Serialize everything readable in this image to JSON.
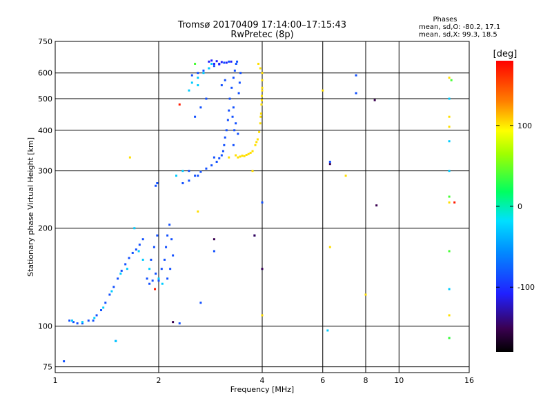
{
  "chart_data": {
    "type": "scatter",
    "title": "Tromsø 20170409 17:14:00–17:15:43",
    "subtitle": "RwPretec (8p)",
    "xlabel": "Frequency [MHz]",
    "ylabel": "Stationary phase Virtual Height [km]",
    "x_scale": "log",
    "y_scale": "log",
    "xlim": [
      1,
      16
    ],
    "ylim": [
      72,
      750
    ],
    "x_ticks": [
      "1",
      "2",
      "4",
      "6",
      "8",
      "10",
      "16"
    ],
    "x_tick_values": [
      1,
      2,
      4,
      6,
      8,
      10,
      16
    ],
    "y_ticks": [
      "75",
      "100",
      "200",
      "300",
      "400",
      "500",
      "600",
      "750"
    ],
    "y_tick_values": [
      75,
      100,
      200,
      300,
      400,
      500,
      600,
      750
    ],
    "grid": true,
    "phase_stats": {
      "heading": "Phases",
      "o_line": "mean, sd,O: -80.2, 17.1",
      "x_line": "mean, sd,X:  99.3, 18.5"
    },
    "colorbar": {
      "label": "[deg]",
      "range": [
        -180,
        180
      ],
      "ticks": [
        "100",
        "0",
        "-100"
      ],
      "tick_values": [
        100,
        0,
        -100
      ]
    },
    "series": [
      {
        "phase": -95,
        "points": [
          [
            1.06,
            78
          ],
          [
            1.1,
            104
          ],
          [
            1.13,
            103
          ],
          [
            1.16,
            102
          ],
          [
            1.2,
            102
          ],
          [
            1.25,
            104
          ],
          [
            1.29,
            104
          ],
          [
            1.32,
            108
          ],
          [
            1.36,
            112
          ],
          [
            1.4,
            118
          ],
          [
            1.44,
            125
          ],
          [
            1.48,
            132
          ],
          [
            1.52,
            140
          ],
          [
            1.56,
            148
          ],
          [
            1.6,
            155
          ],
          [
            1.64,
            162
          ],
          [
            1.68,
            168
          ],
          [
            1.72,
            172
          ],
          [
            1.76,
            178
          ],
          [
            1.8,
            185
          ],
          [
            1.5,
            90
          ],
          [
            1.85,
            140
          ],
          [
            1.88,
            135
          ],
          [
            1.92,
            138
          ],
          [
            1.96,
            145
          ],
          [
            2.0,
            138
          ],
          [
            2.04,
            150
          ],
          [
            2.08,
            160
          ],
          [
            2.1,
            175
          ],
          [
            2.12,
            190
          ],
          [
            2.15,
            205
          ],
          [
            2.18,
            185
          ],
          [
            2.2,
            165
          ],
          [
            2.16,
            150
          ],
          [
            2.12,
            140
          ],
          [
            1.9,
            160
          ],
          [
            1.94,
            175
          ],
          [
            1.98,
            190
          ],
          [
            1.96,
            270
          ],
          [
            1.98,
            275
          ],
          [
            2.35,
            275
          ],
          [
            2.45,
            280
          ],
          [
            2.55,
            290
          ],
          [
            2.65,
            298
          ],
          [
            2.75,
            305
          ],
          [
            2.85,
            312
          ],
          [
            2.95,
            320
          ],
          [
            3.0,
            328
          ],
          [
            3.05,
            335
          ],
          [
            3.08,
            345
          ],
          [
            3.1,
            360
          ],
          [
            3.12,
            380
          ],
          [
            3.15,
            400
          ],
          [
            3.18,
            430
          ],
          [
            3.2,
            460
          ],
          [
            3.22,
            500
          ],
          [
            3.26,
            540
          ],
          [
            3.3,
            580
          ],
          [
            3.33,
            610
          ],
          [
            3.36,
            640
          ],
          [
            3.38,
            650
          ],
          [
            3.28,
            440
          ],
          [
            3.3,
            470
          ],
          [
            3.32,
            400
          ],
          [
            3.35,
            420
          ],
          [
            3.4,
            390
          ],
          [
            3.42,
            520
          ],
          [
            3.44,
            560
          ],
          [
            3.46,
            600
          ],
          [
            2.45,
            300
          ],
          [
            2.6,
            290
          ],
          [
            2.9,
            330
          ],
          [
            3.3,
            360
          ],
          [
            2.5,
            590
          ],
          [
            2.6,
            600
          ],
          [
            2.7,
            610
          ],
          [
            2.8,
            620
          ],
          [
            2.9,
            630
          ],
          [
            3.0,
            640
          ],
          [
            3.1,
            645
          ],
          [
            3.2,
            650
          ],
          [
            2.55,
            440
          ],
          [
            2.65,
            470
          ],
          [
            2.75,
            500
          ],
          [
            3.05,
            550
          ],
          [
            3.12,
            570
          ],
          [
            7.5,
            590
          ],
          [
            7.5,
            520
          ],
          [
            6.3,
            320
          ],
          [
            4.0,
            240
          ],
          [
            3.8,
            190
          ],
          [
            4.0,
            150
          ],
          [
            2.3,
            102
          ],
          [
            2.65,
            118
          ],
          [
            2.9,
            170
          ]
        ]
      },
      {
        "phase": -110,
        "points": [
          [
            2.8,
            650
          ],
          [
            2.85,
            655
          ],
          [
            2.95,
            652
          ],
          [
            3.05,
            648
          ],
          [
            3.15,
            645
          ],
          [
            3.25,
            650
          ],
          [
            2.9,
            640
          ],
          [
            3.0,
            638
          ]
        ]
      },
      {
        "phase": -45,
        "points": [
          [
            1.12,
            104
          ],
          [
            1.2,
            103
          ],
          [
            1.3,
            106
          ],
          [
            1.38,
            114
          ],
          [
            1.46,
            128
          ],
          [
            1.55,
            145
          ],
          [
            1.62,
            150
          ],
          [
            1.7,
            200
          ],
          [
            1.75,
            170
          ],
          [
            1.8,
            160
          ],
          [
            1.88,
            150
          ],
          [
            2.5,
            560
          ],
          [
            2.6,
            580
          ],
          [
            2.7,
            600
          ],
          [
            2.8,
            620
          ],
          [
            2.85,
            640
          ],
          [
            2.6,
            550
          ],
          [
            2.45,
            530
          ],
          [
            2.35,
            300
          ],
          [
            2.25,
            290
          ],
          [
            1.5,
            90
          ],
          [
            2.0,
            140
          ],
          [
            2.05,
            135
          ],
          [
            6.2,
            97
          ],
          [
            14.0,
            92
          ],
          [
            14.0,
            130
          ],
          [
            14.0,
            370
          ],
          [
            14.0,
            500
          ],
          [
            14.0,
            300
          ]
        ]
      },
      {
        "phase": 100,
        "points": [
          [
            3.35,
            335
          ],
          [
            3.45,
            332
          ],
          [
            3.55,
            333
          ],
          [
            3.65,
            338
          ],
          [
            3.75,
            345
          ],
          [
            3.82,
            360
          ],
          [
            3.88,
            375
          ],
          [
            3.92,
            395
          ],
          [
            3.95,
            420
          ],
          [
            3.97,
            450
          ],
          [
            3.98,
            480
          ],
          [
            3.99,
            510
          ],
          [
            4.0,
            540
          ],
          [
            4.0,
            570
          ],
          [
            4.0,
            600
          ],
          [
            3.95,
            620
          ],
          [
            3.9,
            640
          ],
          [
            3.4,
            330
          ],
          [
            3.5,
            334
          ],
          [
            3.6,
            336
          ],
          [
            3.7,
            341
          ],
          [
            3.85,
            368
          ],
          [
            3.96,
            440
          ],
          [
            3.99,
            495
          ],
          [
            4.0,
            530
          ],
          [
            4.0,
            108
          ],
          [
            3.75,
            300
          ],
          [
            6.0,
            530
          ],
          [
            6.3,
            175
          ],
          [
            7.0,
            290
          ],
          [
            8.0,
            125
          ],
          [
            14.0,
            440
          ],
          [
            14.0,
            410
          ],
          [
            14.0,
            580
          ],
          [
            14.0,
            240
          ],
          [
            14.0,
            108
          ],
          [
            1.65,
            330
          ],
          [
            2.6,
            225
          ],
          [
            3.2,
            330
          ]
        ]
      },
      {
        "phase": 20,
        "points": [
          [
            14.2,
            570
          ],
          [
            14.0,
            250
          ],
          [
            14.0,
            170
          ],
          [
            2.55,
            640
          ],
          [
            14.0,
            92
          ]
        ]
      },
      {
        "phase": -150,
        "points": [
          [
            8.5,
            495
          ],
          [
            8.6,
            235
          ],
          [
            6.3,
            315
          ],
          [
            4.0,
            150
          ],
          [
            3.8,
            190
          ],
          [
            2.9,
            185
          ],
          [
            2.2,
            103
          ]
        ]
      },
      {
        "phase": 170,
        "points": [
          [
            2.3,
            480
          ],
          [
            1.95,
            130
          ],
          [
            14.5,
            240
          ]
        ]
      }
    ]
  }
}
